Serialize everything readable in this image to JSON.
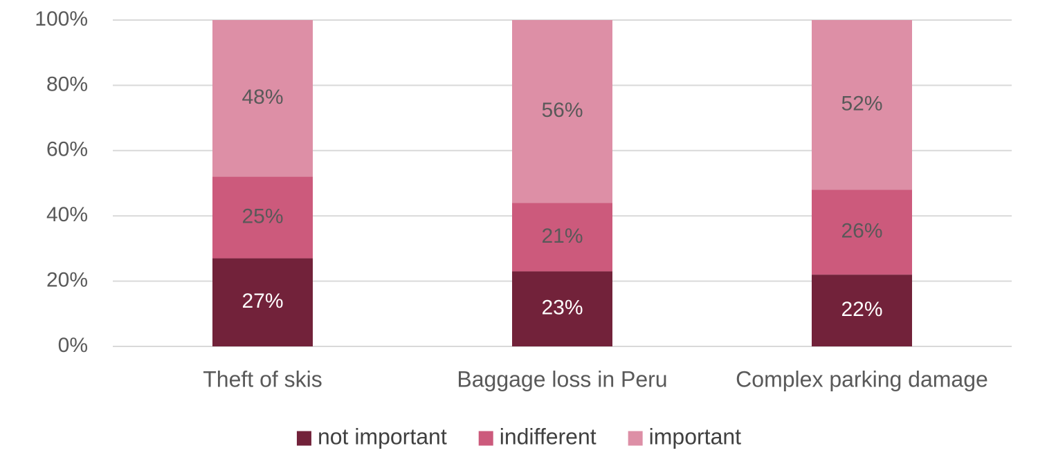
{
  "chart_data": {
    "type": "bar",
    "stacked": true,
    "title": "",
    "xlabel": "",
    "ylabel": "",
    "ylim": [
      0,
      100
    ],
    "yticks": [
      "0%",
      "20%",
      "40%",
      "60%",
      "80%",
      "100%"
    ],
    "ytick_values": [
      0,
      20,
      40,
      60,
      80,
      100
    ],
    "grid": true,
    "legend_position": "bottom",
    "categories": [
      "Theft of skis",
      "Baggage loss in Peru",
      "Complex parking damage"
    ],
    "series": [
      {
        "name": "not important",
        "color": "#72223a",
        "label_color": "#ffffff",
        "values": [
          27,
          23,
          22
        ],
        "labels": [
          "27%",
          "23%",
          "22%"
        ]
      },
      {
        "name": "indifferent",
        "color": "#cc5a7c",
        "label_color": "#595959",
        "values": [
          25,
          21,
          26
        ],
        "labels": [
          "25%",
          "21%",
          "26%"
        ]
      },
      {
        "name": "important",
        "color": "#dd8fa6",
        "label_color": "#595959",
        "values": [
          48,
          56,
          52
        ],
        "labels": [
          "48%",
          "56%",
          "52%"
        ]
      }
    ]
  }
}
